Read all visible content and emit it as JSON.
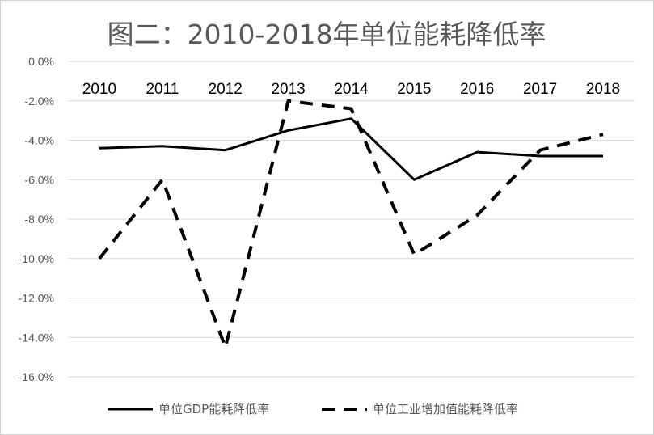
{
  "chart_data": {
    "type": "line",
    "title": "图二：2010-2018年单位能耗降低率",
    "categories": [
      "2010",
      "2011",
      "2012",
      "2013",
      "2014",
      "2015",
      "2016",
      "2017",
      "2018"
    ],
    "y_ticks": [
      "0.0%",
      "-2.0%",
      "-4.0%",
      "-6.0%",
      "-8.0%",
      "-10.0%",
      "-12.0%",
      "-14.0%",
      "-16.0%"
    ],
    "ylim": [
      -16,
      0
    ],
    "y_unit": "%",
    "grid": true,
    "legend_position": "bottom",
    "series": [
      {
        "name": "单位GDP能耗降低率",
        "style": "solid",
        "color": "#000000",
        "values": [
          -4.4,
          -4.3,
          -4.5,
          -3.5,
          -2.9,
          -6.0,
          -4.6,
          -4.8,
          -4.8
        ]
      },
      {
        "name": "单位工业增加值能耗降低率",
        "style": "dashed",
        "color": "#000000",
        "values": [
          -10.0,
          -6.0,
          -14.5,
          -2.0,
          -2.4,
          -9.8,
          -7.8,
          -4.5,
          -3.7
        ]
      }
    ]
  }
}
